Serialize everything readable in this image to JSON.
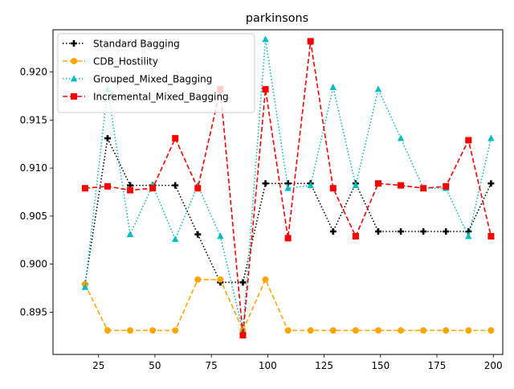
{
  "chart_data": {
    "type": "line",
    "title": "parkinsons",
    "xlabel": "",
    "ylabel": "",
    "x": [
      19,
      29,
      39,
      49,
      59,
      69,
      79,
      89,
      99,
      109,
      119,
      129,
      139,
      149,
      159,
      169,
      179,
      189,
      199
    ],
    "xlim": [
      4.8,
      204.2
    ],
    "ylim": [
      0.8906,
      0.9244
    ],
    "xticks": [
      25,
      50,
      75,
      100,
      125,
      150,
      175,
      200
    ],
    "xtick_labels": [
      "25",
      "50",
      "75",
      "100",
      "125",
      "150",
      "175",
      "200"
    ],
    "yticks": [
      0.895,
      0.9,
      0.905,
      0.91,
      0.915,
      0.92
    ],
    "ytick_labels": [
      "0.895",
      "0.900",
      "0.905",
      "0.910",
      "0.915",
      "0.920"
    ],
    "legend_position": "top-left",
    "series": [
      {
        "name": "Standard Bagging",
        "color": "#000000",
        "linestyle": "dotted",
        "marker": "plus",
        "values": [
          0.8979,
          0.9131,
          0.9082,
          0.9082,
          0.9082,
          0.9031,
          0.8981,
          0.8981,
          0.9084,
          0.9084,
          0.9084,
          0.9034,
          0.9084,
          0.9034,
          0.9034,
          0.9034,
          0.9034,
          0.9034,
          0.9084
        ]
      },
      {
        "name": "CDB_Hostility",
        "color": "#ffa500",
        "linestyle": "dashed",
        "marker": "circle",
        "values": [
          0.8979,
          0.8931,
          0.8931,
          0.8931,
          0.8931,
          0.8984,
          0.8984,
          0.8931,
          0.8984,
          0.8931,
          0.8931,
          0.8931,
          0.8931,
          0.8931,
          0.8931,
          0.8931,
          0.8931,
          0.8931,
          0.8931
        ]
      },
      {
        "name": "Grouped_Mixed_Bagging",
        "color": "#00bfbf",
        "linestyle": "dotted",
        "marker": "triangle",
        "values": [
          0.8976,
          0.9182,
          0.9031,
          0.9082,
          0.9026,
          0.9082,
          0.9029,
          0.893,
          0.9234,
          0.9079,
          0.9082,
          0.9184,
          0.9082,
          0.9182,
          0.9131,
          0.9079,
          0.9079,
          0.9029,
          0.9131
        ]
      },
      {
        "name": "Incremental_Mixed_Bagging",
        "color": "#ff0000",
        "linestyle": "dashed",
        "marker": "square",
        "values": [
          0.9079,
          0.9081,
          0.9077,
          0.9079,
          0.9131,
          0.9079,
          0.9182,
          0.8926,
          0.9182,
          0.9027,
          0.9232,
          0.9079,
          0.9029,
          0.9084,
          0.9082,
          0.9079,
          0.9081,
          0.9129,
          0.9029
        ]
      }
    ]
  }
}
